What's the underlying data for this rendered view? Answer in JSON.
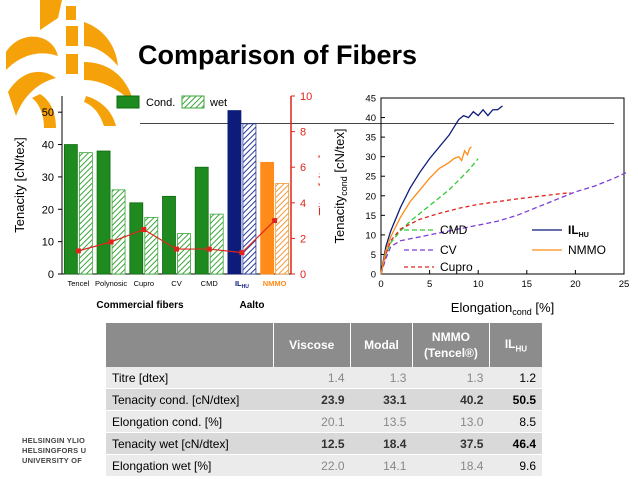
{
  "title": "Comparison of Fibers",
  "university": [
    "HELSINGIN YLIO",
    "HELSINGFORS U",
    "UNIVERSITY OF"
  ],
  "colors": {
    "cond": "#1f8a1f",
    "wet": "#8fcc8f",
    "il": "#0d1b7a",
    "nmmo": "#ff8c1a",
    "titer": "#e0241c"
  },
  "chart_data": [
    {
      "type": "bar",
      "title": "",
      "ylabel": "Tenacity [cN/tex]",
      "y2label": "Titer [dtex]",
      "ylim": [
        0,
        55
      ],
      "yticks": [
        "0",
        "10",
        "20",
        "30",
        "40",
        "50"
      ],
      "y2lim": [
        0,
        10
      ],
      "y2ticks": [
        "0",
        "2",
        "4",
        "6",
        "8",
        "10"
      ],
      "categories": [
        "Tencel",
        "Polynosic",
        "Cupro",
        "CV",
        "CMD",
        "IL",
        "NMMO"
      ],
      "il_sub": "HU",
      "series": [
        {
          "name": "Cond.",
          "values": [
            40,
            38,
            22,
            24,
            33,
            50.5,
            34.5
          ]
        },
        {
          "name": "wet",
          "values": [
            37.5,
            26,
            17.5,
            12.5,
            18.5,
            46.4,
            28
          ]
        },
        {
          "name": "Titer",
          "values": [
            1.3,
            1.8,
            2.5,
            1.4,
            1.4,
            1.2,
            3.0
          ]
        }
      ],
      "legend": [
        "Cond.",
        "wet"
      ],
      "group_labels": [
        "Commercial fibers",
        "Aalto"
      ]
    },
    {
      "type": "line",
      "xlabel": "Elongation",
      "xlabel_sub": "cond",
      "xlabel_unit": "[%]",
      "ylabel": "Tenacity",
      "ylabel_sub": "cond",
      "ylabel_unit": "[cN/tex]",
      "xlim": [
        0,
        25
      ],
      "xticks": [
        "0",
        "5",
        "10",
        "15",
        "20",
        "25"
      ],
      "ylim": [
        0,
        45
      ],
      "yticks": [
        "0",
        "5",
        "10",
        "15",
        "20",
        "25",
        "30",
        "35",
        "40",
        "45"
      ],
      "series": [
        {
          "name": "CMD",
          "x": [
            0,
            0.5,
            1,
            2,
            3,
            4,
            5,
            6,
            7,
            8,
            9,
            10
          ],
          "y": [
            0,
            5,
            8,
            11,
            13.5,
            15.5,
            17.5,
            19.5,
            21.5,
            24,
            26.5,
            29.5
          ]
        },
        {
          "name": "CV",
          "x": [
            0,
            0.5,
            1,
            2,
            4,
            6,
            8,
            10,
            12,
            14,
            16,
            18,
            20,
            22,
            24,
            25.3
          ],
          "y": [
            0,
            4,
            7,
            8.5,
            9.5,
            10.5,
            11.5,
            12.5,
            13.5,
            15,
            17,
            19,
            21,
            22.5,
            24.5,
            26
          ]
        },
        {
          "name": "Cupro",
          "x": [
            0,
            0.5,
            1,
            2,
            4,
            6,
            8,
            10,
            12,
            14,
            16,
            18,
            19.5
          ],
          "y": [
            0,
            5,
            8.5,
            11.5,
            14,
            15.5,
            16.8,
            17.8,
            18.5,
            19.2,
            19.8,
            20.4,
            20.8
          ]
        },
        {
          "name": "IL",
          "sub": "HU",
          "x": [
            0,
            0.5,
            1,
            2,
            3,
            4,
            5,
            6,
            7,
            7.5,
            8,
            8.5,
            9,
            9.5,
            10,
            10.5,
            11,
            11.5,
            12,
            12.5
          ],
          "y": [
            0,
            7,
            11,
            17,
            22,
            26,
            29.5,
            32.5,
            35.5,
            37.5,
            39.5,
            40.5,
            40,
            41.5,
            40.5,
            42,
            40.5,
            42,
            42,
            43
          ]
        },
        {
          "name": "NMMO",
          "x": [
            0,
            0.5,
            1,
            2,
            3,
            4,
            5,
            6,
            7,
            7.5,
            8,
            8.3,
            8.6,
            8.9,
            9.1,
            9.3
          ],
          "y": [
            0,
            6,
            9.5,
            14.5,
            18.5,
            21.5,
            24.5,
            27,
            28.5,
            29.5,
            30,
            29,
            31.5,
            30.5,
            32,
            32.5
          ]
        }
      ]
    }
  ],
  "table": {
    "headers": [
      "",
      "Viscose",
      "Modal",
      "NMMO (Tencel®)",
      "IL"
    ],
    "il_sub": "HU",
    "rows": [
      {
        "label": "Titre [dtex]",
        "values": [
          "1.4",
          "1.3",
          "1.3",
          "1.2"
        ]
      },
      {
        "label": "Tenacity cond. [cN/dtex]",
        "values": [
          "23.9",
          "33.1",
          "40.2",
          "50.5"
        ]
      },
      {
        "label": "Elongation cond. [%]",
        "values": [
          "20.1",
          "13.5",
          "13.0",
          "8.5"
        ]
      },
      {
        "label": "Tenacity wet [cN/dtex]",
        "values": [
          "12.5",
          "18.4",
          "37.5",
          "46.4"
        ]
      },
      {
        "label": "Elongation wet [%]",
        "values": [
          "22.0",
          "14.1",
          "18.4",
          "9.6"
        ]
      }
    ]
  }
}
